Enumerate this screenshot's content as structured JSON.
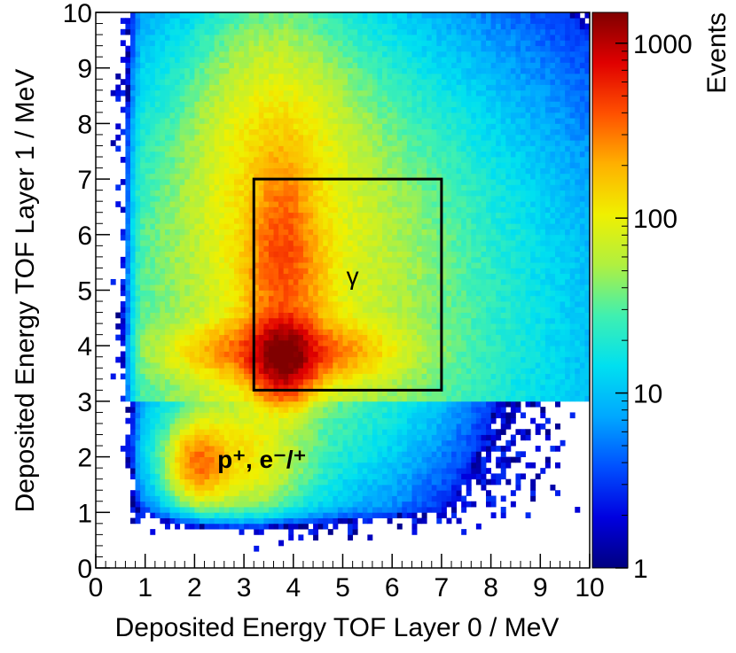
{
  "chart_data": {
    "type": "heatmap",
    "title": "",
    "xlabel": "Deposited Energy TOF Layer 0 / MeV",
    "ylabel": "Deposited Energy TOF Layer 1 / MeV",
    "xlim": [
      0,
      10
    ],
    "ylim": [
      0,
      10
    ],
    "x_ticks": [
      "0",
      "1",
      "2",
      "3",
      "4",
      "5",
      "6",
      "7",
      "8",
      "9",
      "10"
    ],
    "y_ticks": [
      "0",
      "1",
      "2",
      "3",
      "4",
      "5",
      "6",
      "7",
      "8",
      "9",
      "10"
    ],
    "bins": 100,
    "colorbar": {
      "label": "Events",
      "scale": "log",
      "range": [
        1,
        1500
      ],
      "ticks": [
        {
          "value": 1,
          "label": "1"
        },
        {
          "value": 10,
          "label": "10"
        },
        {
          "value": 100,
          "label": "100"
        },
        {
          "value": 1000,
          "label": "1000"
        }
      ],
      "palette": [
        "#000080",
        "#0000e0",
        "#0050ff",
        "#00a8ff",
        "#00e0f0",
        "#40f0b0",
        "#b0f040",
        "#f0f000",
        "#ffb000",
        "#ff5000",
        "#e00000",
        "#800000"
      ]
    },
    "components": [
      {
        "name": "gamma core",
        "x": 3.8,
        "y": 3.8,
        "peak_events": 1400
      },
      {
        "name": "horizontal band",
        "x": 3.8,
        "y": 3.9,
        "peak_events": 380
      },
      {
        "name": "vertical band",
        "x": 3.8,
        "y": 5.6,
        "peak_events": 300
      },
      {
        "name": "proton/electron spot",
        "x": 2.1,
        "y": 1.9,
        "peak_events": 250
      },
      {
        "name": "diffuse background",
        "x": 4.5,
        "y": 4.5,
        "peak_events": 30
      }
    ],
    "selection_box": {
      "x0": 3.2,
      "x1": 7.0,
      "y0": 3.2,
      "y1": 7.0
    },
    "annotations": [
      {
        "text": "γ",
        "x": 5.2,
        "y": 5.1
      },
      {
        "text": "p⁺, e⁻/⁺",
        "x": 3.0,
        "y": 1.8
      }
    ]
  }
}
